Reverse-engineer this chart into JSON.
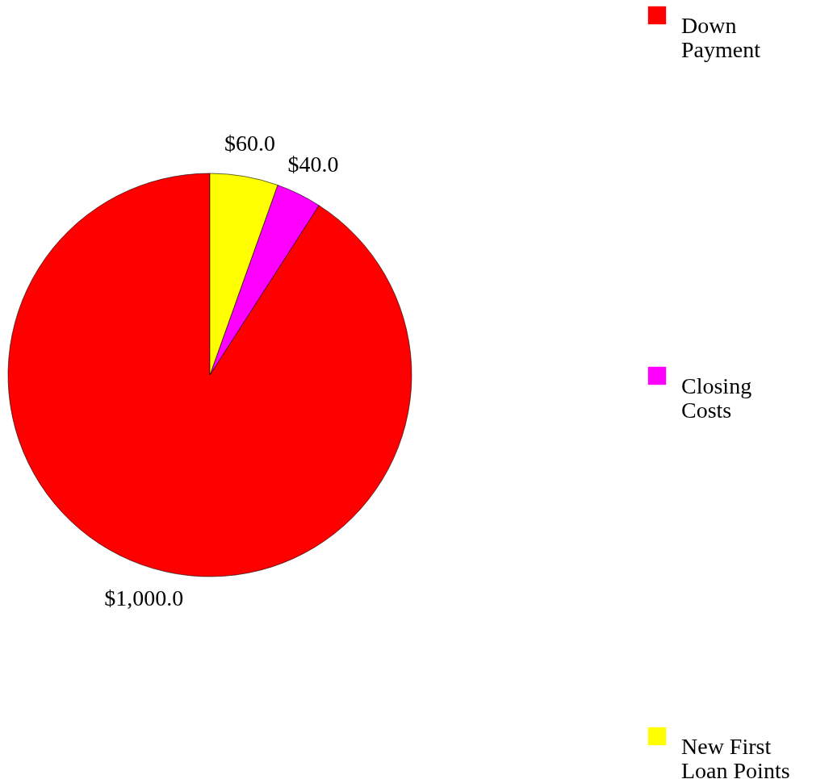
{
  "chart_data": {
    "type": "pie",
    "categories": [
      "Down Payment",
      "Closing Costs",
      "New First Loan Points"
    ],
    "values": [
      1000,
      40,
      60
    ],
    "colors": [
      "#ff0000",
      "#ff00ff",
      "#ffff00"
    ],
    "value_labels": [
      "$1,000.0",
      "$40.0",
      "$60.0"
    ],
    "legend": "right"
  }
}
